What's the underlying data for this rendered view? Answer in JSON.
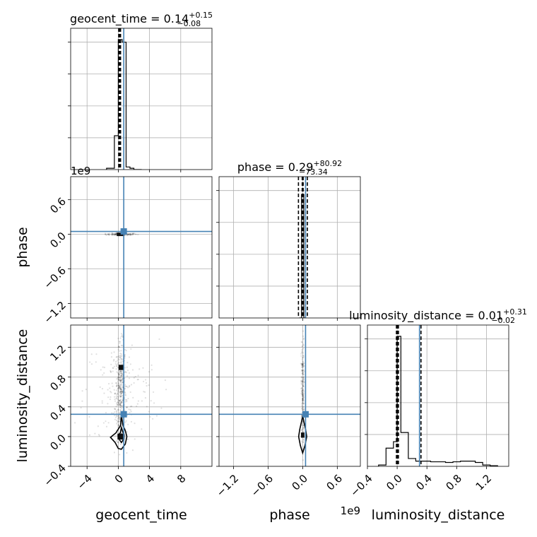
{
  "chart_data": {
    "type": "corner",
    "parameters": [
      "geocent_time",
      "phase",
      "luminosity_distance"
    ],
    "axis_labels": [
      "geocent_time",
      "phase",
      "luminosity_distance"
    ],
    "truths": [
      0.7,
      0.05,
      0.3
    ],
    "truth_color": "#4682b4",
    "line_color": "#000000",
    "grid": true,
    "titles": [
      {
        "param": "geocent_time",
        "text": "geocent_time = 0.14",
        "plus": "+0.15",
        "minus": "−0.08"
      },
      {
        "param": "phase",
        "text": "phase = 0.29",
        "plus": "+80.92",
        "minus": "−73.34"
      },
      {
        "param": "luminosity_distance",
        "text": "luminosity_distance = 0.01",
        "plus": "+0.31",
        "minus": "−0.02"
      }
    ],
    "offset_labels": [
      {
        "param": "phase",
        "where": "y-axis of phase row",
        "text": "1e9"
      },
      {
        "param": "phase",
        "where": "x-axis of phase column",
        "text": "1e9"
      }
    ],
    "ranges": {
      "geocent_time": [
        -6.1,
        12.0
      ],
      "phase": [
        -1.45,
        1.0
      ],
      "luminosity_distance": [
        -0.4,
        1.5
      ]
    },
    "ticks": {
      "geocent_time": [
        -4,
        0,
        4,
        8
      ],
      "phase": [
        -1.2,
        -0.6,
        0.0,
        0.6
      ],
      "luminosity_distance": [
        -0.4,
        0.0,
        0.4,
        0.8,
        1.2
      ]
    },
    "tick_labels": {
      "geocent_time": [
        "−4",
        "0",
        "4",
        "8"
      ],
      "phase": [
        "−1.2",
        "−0.6",
        "0.0",
        "0.6"
      ],
      "luminosity_distance": [
        "−0.4",
        "0.0",
        "0.4",
        "0.8",
        "1.2"
      ]
    },
    "quantiles": {
      "geocent_time": [
        0.06,
        0.14,
        0.29
      ],
      "phase": [
        -0.0733,
        0.0003,
        0.0809
      ],
      "luminosity_distance": [
        -0.01,
        0.01,
        0.32
      ]
    },
    "histograms": {
      "geocent_time": {
        "edges": [
          -1.5,
          -0.5,
          0.0,
          0.5,
          1.0,
          1.5,
          2.0,
          3.0
        ],
        "counts": [
          0.01,
          0.26,
          1.0,
          0.98,
          0.02,
          0.01,
          0.0
        ]
      },
      "phase": {
        "edges": [
          -0.06,
          -0.02,
          0.02,
          0.06
        ],
        "counts": [
          0.0,
          0.95,
          0.0
        ]
      },
      "luminosity_distance": {
        "edges": [
          -0.25,
          -0.15,
          -0.05,
          0.0,
          0.05,
          0.15,
          0.25,
          0.35,
          0.45,
          0.55,
          0.65,
          0.75,
          0.85,
          0.95,
          1.05,
          1.15,
          1.25,
          1.35
        ],
        "counts": [
          0.01,
          0.14,
          0.19,
          1.0,
          0.26,
          0.06,
          0.04,
          0.04,
          0.035,
          0.035,
          0.03,
          0.035,
          0.04,
          0.04,
          0.03,
          0.01,
          0.005
        ]
      }
    },
    "contours": [
      {
        "x_param": "geocent_time",
        "y_param": "luminosity_distance",
        "levels": [
          [
            [
              0.4,
              -0.17
            ],
            [
              0.9,
              -0.1
            ],
            [
              1.1,
              0.0
            ],
            [
              0.9,
              0.08
            ],
            [
              0.6,
              0.15
            ],
            [
              0.4,
              0.28
            ],
            [
              0.3,
              0.15
            ],
            [
              -0.3,
              0.05
            ],
            [
              -1.0,
              -0.01
            ],
            [
              -0.4,
              -0.08
            ],
            [
              0.0,
              -0.16
            ],
            [
              0.4,
              -0.17
            ]
          ],
          [
            [
              0.4,
              -0.08
            ],
            [
              0.7,
              -0.03
            ],
            [
              0.75,
              0.02
            ],
            [
              0.55,
              0.07
            ],
            [
              0.4,
              0.12
            ],
            [
              0.25,
              0.05
            ],
            [
              0.0,
              0.02
            ],
            [
              0.2,
              -0.05
            ],
            [
              0.4,
              -0.08
            ]
          ]
        ]
      },
      {
        "x_param": "phase",
        "y_param": "luminosity_distance",
        "levels": [
          [
            [
              0.0,
              -0.22
            ],
            [
              0.04,
              -0.12
            ],
            [
              0.07,
              0.0
            ],
            [
              0.05,
              0.1
            ],
            [
              0.02,
              0.2
            ],
            [
              0.0,
              0.28
            ],
            [
              -0.02,
              0.2
            ],
            [
              -0.05,
              0.1
            ],
            [
              -0.07,
              0.0
            ],
            [
              -0.04,
              -0.12
            ],
            [
              0.0,
              -0.22
            ]
          ]
        ]
      }
    ],
    "scatter_clusters": [
      {
        "x_param": "geocent_time",
        "y_param": "phase",
        "x_mean": 0.4,
        "x_sd": 1.0,
        "y_mean": 0.0,
        "y_sd": 0.01,
        "n": 120
      },
      {
        "x_param": "geocent_time",
        "y_param": "luminosity_distance",
        "x_mean": 0.3,
        "x_sd": 0.35,
        "y_mean": 0.6,
        "y_sd": 0.32,
        "n": 420
      },
      {
        "x_param": "geocent_time",
        "y_param": "luminosity_distance",
        "x_mean": 0.4,
        "x_sd": 2.4,
        "y_mean": 0.6,
        "y_sd": 0.35,
        "n": 170
      },
      {
        "x_param": "phase",
        "y_param": "luminosity_distance",
        "x_mean": 0.0,
        "x_sd": 0.012,
        "y_mean": 0.6,
        "y_sd": 0.35,
        "n": 220
      }
    ],
    "dense_cores": [
      {
        "x_param": "geocent_time",
        "y_param": "phase",
        "x": 0.3,
        "y": 0.0,
        "w": 1.0,
        "h": 0.06
      },
      {
        "x_param": "geocent_time",
        "y_param": "luminosity_distance",
        "x": 0.35,
        "y": 0.0,
        "w": 0.9,
        "h": 0.08
      },
      {
        "x_param": "geocent_time",
        "y_param": "luminosity_distance",
        "x": 0.35,
        "y": 0.93,
        "w": 0.6,
        "h": 0.07
      },
      {
        "x_param": "phase",
        "y_param": "luminosity_distance",
        "x": 0.0,
        "y": 0.02,
        "w": 0.06,
        "h": 0.07
      }
    ]
  }
}
